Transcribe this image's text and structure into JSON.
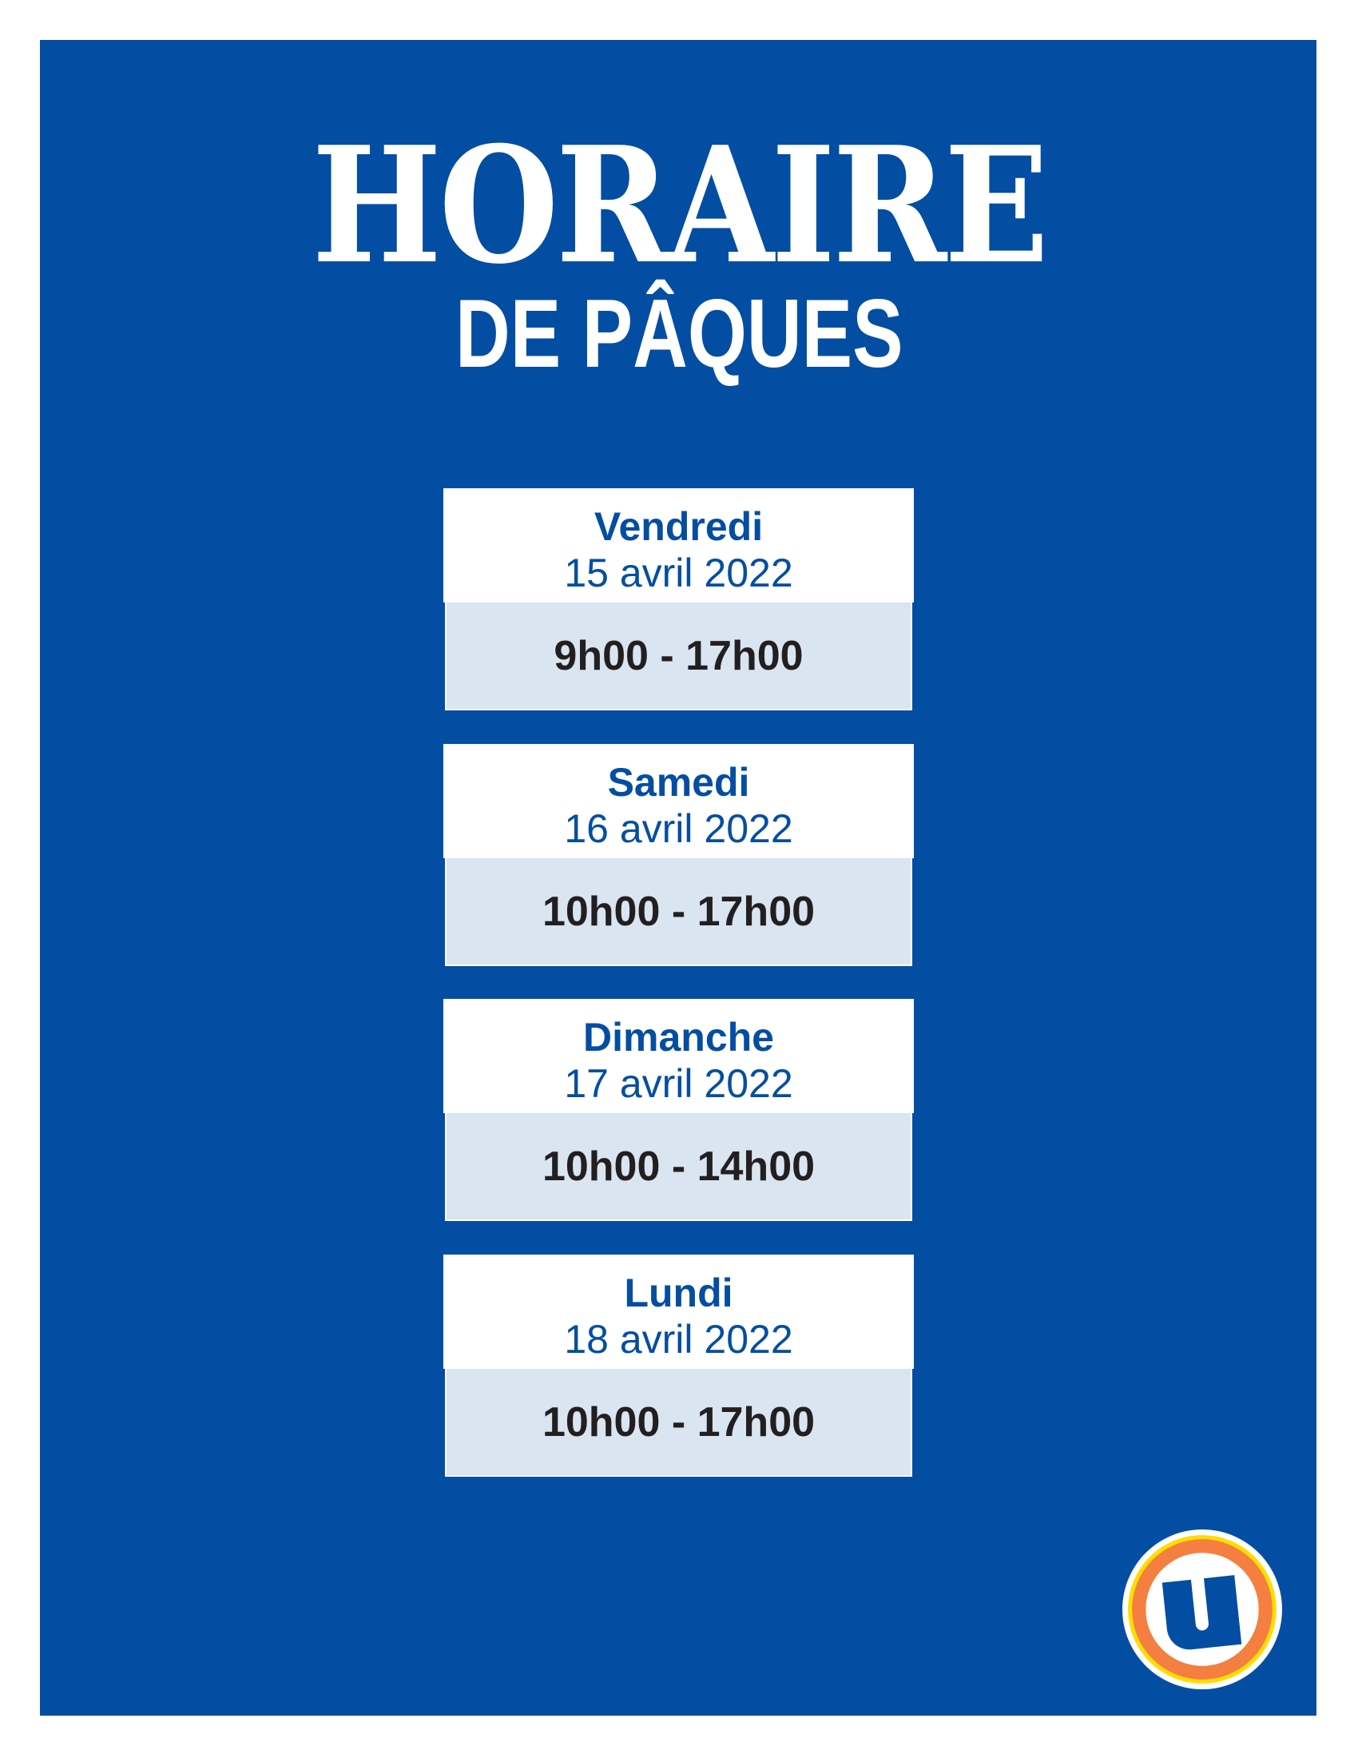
{
  "title": "HORAIRE",
  "subtitle": "DE PÂQUES",
  "days": [
    {
      "day": "Vendredi",
      "date": "15 avril 2022",
      "hours": "9h00 - 17h00"
    },
    {
      "day": "Samedi",
      "date": "16 avril 2022",
      "hours": "10h00 - 17h00"
    },
    {
      "day": "Dimanche",
      "date": "17 avril 2022",
      "hours": "10h00 - 14h00"
    },
    {
      "day": "Lundi",
      "date": "18 avril 2022",
      "hours": "10h00 - 17h00"
    }
  ],
  "logo": {
    "icon": "u-brand-logo",
    "colors": {
      "blue": "#034ea2",
      "orange": "#f47f41",
      "yellow": "#ffdd00",
      "white": "#ffffff"
    }
  },
  "colors": {
    "background": "#034ea2",
    "hours_bg": "#d9e5f1",
    "hours_text": "#231f20"
  }
}
